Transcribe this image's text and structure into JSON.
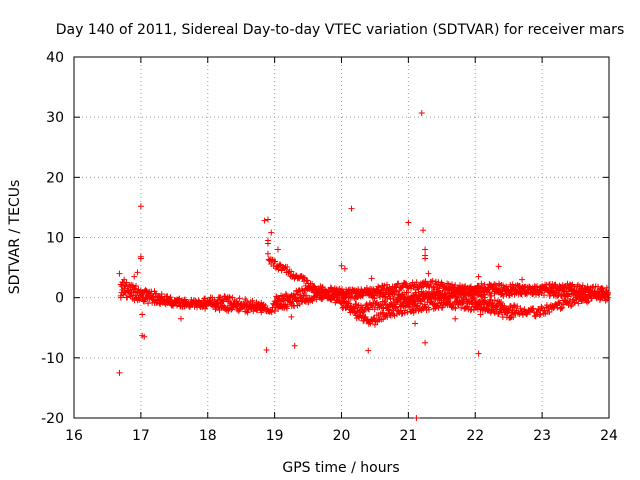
{
  "chart_data": {
    "type": "scatter",
    "title": "Day 140 of 2011, Sidereal Day-to-day VTEC variation (SDTVAR) for receiver mars",
    "xlabel": "GPS time / hours",
    "ylabel": "SDTVAR / TECUs",
    "xlim": [
      16,
      24
    ],
    "ylim": [
      -20,
      40
    ],
    "xticks": [
      16,
      17,
      18,
      19,
      20,
      21,
      22,
      23,
      24
    ],
    "yticks": [
      -20,
      -10,
      0,
      10,
      20,
      30,
      40
    ],
    "grid": true,
    "marker": "+",
    "color": "#ff0000",
    "series": [
      {
        "name": "mars",
        "bands": [
          {
            "x": [
              16.7,
              16.9,
              17.1,
              17.4,
              17.7,
              18.0,
              18.3,
              18.6,
              18.85,
              19.0,
              19.3,
              19.6,
              19.9,
              20.2,
              20.5,
              20.8,
              21.1,
              21.4,
              21.7,
              22.0,
              22.3,
              22.6,
              22.9,
              23.2,
              23.5,
              23.8,
              23.99
            ],
            "y": [
              1.0,
              0.2,
              -0.3,
              -0.6,
              -0.9,
              -1.2,
              -1.5,
              -1.8,
              -2.0,
              -1.6,
              -0.8,
              0.2,
              0.6,
              0.5,
              0.5,
              0.4,
              0.4,
              0.3,
              0.2,
              -0.3,
              -1.0,
              -2.0,
              -2.5,
              -1.5,
              -0.5,
              0.1,
              0.3
            ]
          },
          {
            "x": [
              16.7,
              16.9,
              17.1,
              17.3,
              17.5,
              17.7,
              17.9,
              18.2,
              18.5,
              18.85
            ],
            "y": [
              2.0,
              1.6,
              0.8,
              0.0,
              -0.8,
              -1.2,
              -0.8,
              -0.3,
              -0.8,
              -1.5
            ]
          },
          {
            "x": [
              18.9,
              19.0,
              19.2,
              19.4,
              19.6,
              19.8,
              20.0,
              20.3,
              20.6,
              21.0,
              21.4,
              21.8,
              22.2,
              22.6,
              23.0,
              23.4,
              23.8,
              23.99
            ],
            "y": [
              7.0,
              5.5,
              4.5,
              3.0,
              1.5,
              0.5,
              -1.0,
              -1.8,
              -1.2,
              -0.5,
              0.5,
              1.2,
              1.8,
              1.5,
              1.0,
              0.8,
              0.6,
              0.5
            ]
          },
          {
            "x": [
              19.0,
              19.3,
              19.6,
              19.9,
              20.2,
              20.5,
              20.9,
              21.3,
              21.7,
              22.0,
              22.4,
              22.8,
              23.2,
              23.6,
              23.99
            ],
            "y": [
              -0.5,
              0.5,
              1.3,
              1.0,
              0.6,
              1.2,
              1.8,
              2.2,
              1.6,
              1.0,
              0.8,
              1.2,
              1.8,
              1.4,
              1.0
            ]
          },
          {
            "x": [
              20.0,
              20.2,
              20.4,
              20.6,
              20.9,
              21.2,
              21.5,
              21.8,
              22.1,
              22.4,
              22.6
            ],
            "y": [
              -0.5,
              -2.5,
              -4.0,
              -3.0,
              -2.0,
              -1.5,
              -1.0,
              -1.3,
              -1.5,
              -2.5,
              -3.0
            ]
          }
        ],
        "outliers": [
          [
            16.68,
            -12.5
          ],
          [
            16.68,
            4.0
          ],
          [
            16.7,
            0.0
          ],
          [
            16.75,
            3.0
          ],
          [
            16.9,
            3.5
          ],
          [
            16.95,
            4.2
          ],
          [
            17.0,
            15.2
          ],
          [
            17.0,
            6.8
          ],
          [
            17.0,
            6.5
          ],
          [
            17.02,
            -2.8
          ],
          [
            17.02,
            -6.3
          ],
          [
            17.05,
            -6.5
          ],
          [
            17.6,
            -3.5
          ],
          [
            18.85,
            12.8
          ],
          [
            18.9,
            13.0
          ],
          [
            18.88,
            -8.7
          ],
          [
            18.9,
            9.5
          ],
          [
            18.95,
            10.8
          ],
          [
            18.9,
            9.0
          ],
          [
            19.05,
            8.0
          ],
          [
            19.25,
            -3.2
          ],
          [
            19.3,
            -8.0
          ],
          [
            20.0,
            5.3
          ],
          [
            20.05,
            4.8
          ],
          [
            20.15,
            14.8
          ],
          [
            20.4,
            -8.8
          ],
          [
            20.45,
            3.2
          ],
          [
            20.5,
            -4.5
          ],
          [
            21.0,
            12.5
          ],
          [
            21.08,
            -2.5
          ],
          [
            21.1,
            -4.3
          ],
          [
            21.12,
            -20.0
          ],
          [
            21.2,
            30.7
          ],
          [
            21.22,
            11.2
          ],
          [
            21.25,
            8.0
          ],
          [
            21.25,
            7.0
          ],
          [
            21.25,
            -7.5
          ],
          [
            21.3,
            4.0
          ],
          [
            22.05,
            -9.3
          ],
          [
            22.05,
            3.5
          ],
          [
            22.08,
            -2.8
          ],
          [
            22.35,
            5.2
          ],
          [
            22.7,
            3.0
          ],
          [
            21.7,
            -3.5
          ],
          [
            23.95,
            -0.5
          ],
          [
            21.25,
            6.5
          ],
          [
            19.0,
            6.0
          ]
        ]
      }
    ]
  }
}
